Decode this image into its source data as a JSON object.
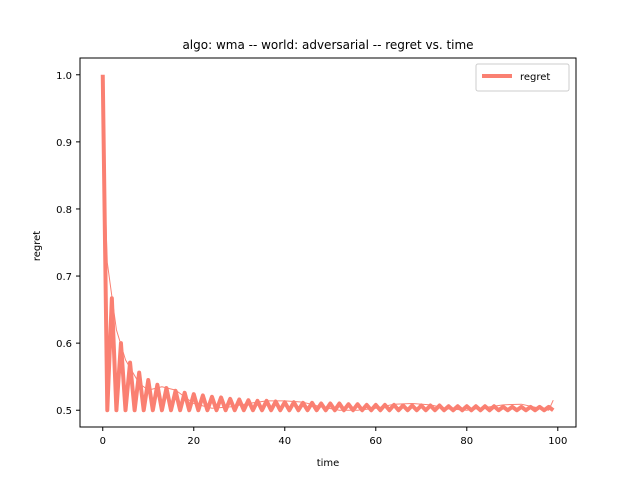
{
  "chart_data": {
    "type": "line",
    "title": "algo: wma -- world: adversarial -- regret vs. time",
    "xlabel": "time",
    "ylabel": "regret",
    "xlim": [
      -5,
      104
    ],
    "ylim": [
      0.475,
      1.025
    ],
    "xticks": [
      0,
      20,
      40,
      60,
      80,
      100
    ],
    "yticks": [
      0.5,
      0.6,
      0.7,
      0.8,
      0.9,
      1.0
    ],
    "xtick_labels": [
      "0",
      "20",
      "40",
      "60",
      "80",
      "100"
    ],
    "ytick_labels": [
      "0.5",
      "0.6",
      "0.7",
      "0.8",
      "0.9",
      "1.0"
    ],
    "legend_position": "top-right",
    "grid": false,
    "series": [
      {
        "name": "regret",
        "color": "#fa8072",
        "x": [
          0,
          1,
          2,
          3,
          4,
          5,
          6,
          7,
          8,
          9,
          10,
          11,
          12,
          13,
          14,
          15,
          16,
          17,
          18,
          19,
          20,
          21,
          22,
          23,
          24,
          25,
          26,
          27,
          28,
          29,
          30,
          31,
          32,
          33,
          34,
          35,
          36,
          37,
          38,
          39,
          40,
          41,
          42,
          43,
          44,
          45,
          46,
          47,
          48,
          49,
          50,
          51,
          52,
          53,
          54,
          55,
          56,
          57,
          58,
          59,
          60,
          61,
          62,
          63,
          64,
          65,
          66,
          67,
          68,
          69,
          70,
          71,
          72,
          73,
          74,
          75,
          76,
          77,
          78,
          79,
          80,
          81,
          82,
          83,
          84,
          85,
          86,
          87,
          88,
          89,
          90,
          91,
          92,
          93,
          94,
          95,
          96,
          97,
          98,
          99
        ],
        "y": [
          1.0,
          0.5,
          0.667,
          0.5,
          0.6,
          0.5,
          0.571,
          0.5,
          0.556,
          0.5,
          0.545,
          0.5,
          0.538,
          0.5,
          0.533,
          0.5,
          0.529,
          0.5,
          0.526,
          0.5,
          0.524,
          0.5,
          0.522,
          0.5,
          0.52,
          0.5,
          0.519,
          0.5,
          0.517,
          0.5,
          0.516,
          0.5,
          0.515,
          0.5,
          0.514,
          0.5,
          0.514,
          0.5,
          0.513,
          0.5,
          0.512,
          0.5,
          0.512,
          0.5,
          0.511,
          0.5,
          0.511,
          0.5,
          0.51,
          0.5,
          0.51,
          0.5,
          0.51,
          0.5,
          0.509,
          0.5,
          0.509,
          0.5,
          0.508,
          0.5,
          0.508,
          0.5,
          0.508,
          0.5,
          0.508,
          0.5,
          0.507,
          0.5,
          0.507,
          0.5,
          0.507,
          0.5,
          0.507,
          0.5,
          0.507,
          0.5,
          0.506,
          0.5,
          0.506,
          0.5,
          0.506,
          0.5,
          0.506,
          0.5,
          0.506,
          0.5,
          0.506,
          0.5,
          0.505,
          0.5,
          0.505,
          0.5,
          0.505,
          0.5,
          0.505,
          0.5,
          0.505,
          0.5,
          0.505,
          0.5
        ]
      },
      {
        "name": "",
        "color": "#fa8072",
        "x": [
          0,
          1,
          3,
          5,
          8,
          10,
          13,
          16,
          20,
          24,
          28,
          32,
          36,
          40,
          44,
          48,
          52,
          56,
          60,
          64,
          68,
          72,
          76,
          80,
          84,
          88,
          92,
          96,
          98,
          99
        ],
        "y": [
          0.92,
          0.72,
          0.62,
          0.575,
          0.54,
          0.53,
          0.535,
          0.53,
          0.51,
          0.503,
          0.505,
          0.51,
          0.514,
          0.514,
          0.512,
          0.505,
          0.5,
          0.5,
          0.503,
          0.509,
          0.51,
          0.508,
          0.502,
          0.5,
          0.504,
          0.508,
          0.509,
          0.503,
          0.5,
          0.515
        ]
      }
    ]
  }
}
